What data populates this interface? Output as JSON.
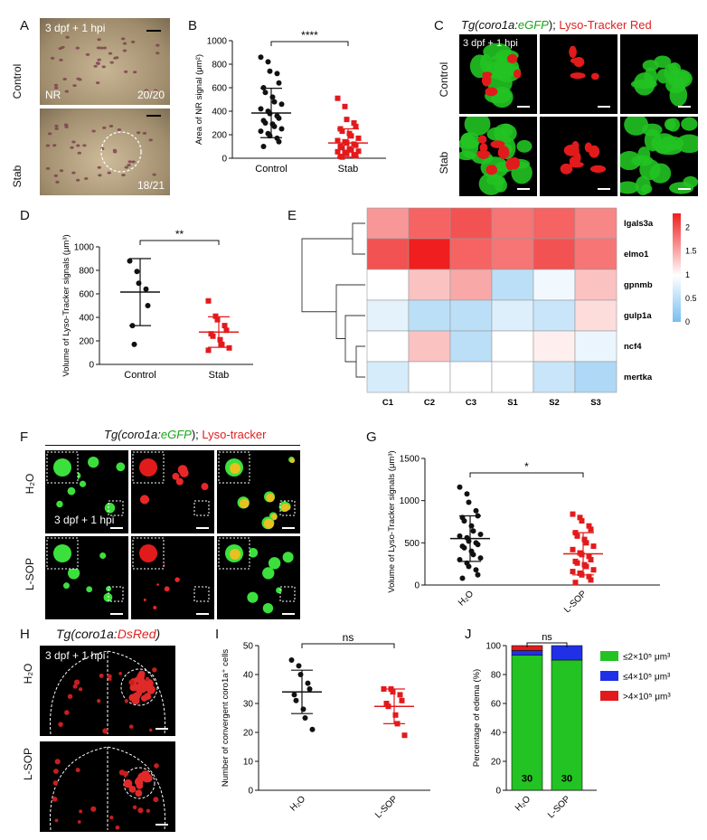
{
  "colors": {
    "ctrl": "#111111",
    "stab": "#e31a1c",
    "green": "#22c322",
    "blue": "#1f30e6",
    "lyso": "#e11b1b"
  },
  "panels": {
    "A": {
      "letter": "A",
      "time": "3 dpf + 1 hpi",
      "row1": "Control",
      "row2": "Stab",
      "nr": "NR",
      "count1": "20/20",
      "count2": "18/21"
    },
    "B": {
      "letter": "B",
      "sig": "****"
    },
    "C": {
      "letter": "C",
      "title_tg": "Tg(coro1a:",
      "title_gfp": "eGFP",
      "title_end": ");",
      "title_lyso": " Lyso-Tracker Red",
      "time": "3 dpf + 1 hpi",
      "row1": "Control",
      "row2": "Stab"
    },
    "D": {
      "letter": "D",
      "sig": "**"
    },
    "E": {
      "letter": "E",
      "genes": [
        "lgals3a",
        "elmo1",
        "gpnmb",
        "gulp1a",
        "ncf4",
        "mertka"
      ],
      "samples": [
        "C1",
        "C2",
        "C3",
        "S1",
        "S2",
        "S3"
      ],
      "scale": [
        "2",
        "1.5",
        "1",
        "0.5",
        "0"
      ]
    },
    "F": {
      "letter": "F",
      "title_tg": "Tg(coro1a:",
      "title_gfp": "eGFP",
      "title_end": ");",
      "title_lyso": " Lyso-tracker",
      "time": "3 dpf + 1 hpi",
      "row1": "H₂O",
      "row2": "L-SOP"
    },
    "G": {
      "letter": "G",
      "sig": "*"
    },
    "H": {
      "letter": "H",
      "title_tg": "Tg(coro1a:",
      "title_red": "DsRed",
      "title_end": ")",
      "time": "3 dpf + 1 hpi",
      "row1": "H₂O",
      "row2": "L-SOP"
    },
    "I": {
      "letter": "I",
      "sig": "ns"
    },
    "J": {
      "letter": "J",
      "sig": "ns",
      "n1": "30",
      "n2": "30"
    }
  },
  "chart_data": [
    {
      "id": "B",
      "type": "scatter",
      "ylabel": "Area of NR signal (μm²)",
      "ylim": [
        0,
        1000
      ],
      "yticks": [
        0,
        200,
        400,
        600,
        800,
        1000
      ],
      "categories": [
        "Control",
        "Stab"
      ],
      "series": [
        {
          "name": "Control",
          "mean": 385,
          "sd": 210,
          "values": [
            860,
            820,
            740,
            720,
            640,
            600,
            560,
            520,
            480,
            460,
            420,
            400,
            380,
            360,
            340,
            320,
            300,
            290,
            270,
            250,
            230,
            210,
            190,
            170,
            140,
            100
          ]
        },
        {
          "name": "Stab",
          "mean": 130,
          "sd": 120,
          "values": [
            510,
            440,
            330,
            300,
            270,
            250,
            230,
            210,
            190,
            170,
            150,
            140,
            130,
            120,
            110,
            100,
            90,
            80,
            70,
            60,
            55,
            50,
            40,
            30,
            20,
            15,
            10
          ]
        }
      ]
    },
    {
      "id": "D",
      "type": "scatter",
      "ylabel": "Volume of Lyso-Tracker signals (μm³)",
      "ylim": [
        0,
        1000
      ],
      "yticks": [
        0,
        200,
        400,
        600,
        800,
        1000
      ],
      "categories": [
        "Control",
        "Stab"
      ],
      "series": [
        {
          "name": "Control",
          "mean": 615,
          "sd": 285,
          "values": [
            880,
            790,
            690,
            640,
            500,
            330,
            170
          ]
        },
        {
          "name": "Stab",
          "mean": 275,
          "sd": 130,
          "values": [
            540,
            410,
            380,
            330,
            290,
            260,
            240,
            210,
            170,
            140,
            120
          ]
        }
      ]
    },
    {
      "id": "E",
      "type": "heatmap",
      "rows": [
        "lgals3a",
        "elmo1",
        "gpnmb",
        "gulp1a",
        "ncf4",
        "mertka"
      ],
      "cols": [
        "C1",
        "C2",
        "C3",
        "S1",
        "S2",
        "S3"
      ],
      "zlim": [
        0,
        2.3
      ],
      "values": [
        [
          1.6,
          1.9,
          2.0,
          1.8,
          1.9,
          1.7
        ],
        [
          2.0,
          2.3,
          1.9,
          1.8,
          2.0,
          1.8
        ],
        [
          1.0,
          1.35,
          1.5,
          0.5,
          0.9,
          1.35
        ],
        [
          0.8,
          0.5,
          0.5,
          0.75,
          0.6,
          1.2
        ],
        [
          1.0,
          1.35,
          0.5,
          1.0,
          1.1,
          0.85
        ],
        [
          0.7,
          1.0,
          1.0,
          1.0,
          0.6,
          0.4
        ]
      ]
    },
    {
      "id": "G",
      "type": "scatter",
      "ylabel": "Volume of Lyso-Tracker signals (μm³)",
      "ylim": [
        0,
        1500
      ],
      "yticks": [
        0,
        500,
        1000,
        1500
      ],
      "categories": [
        "H₂O",
        "L-SOP"
      ],
      "series": [
        {
          "name": "H₂O",
          "mean": 550,
          "sd": 270,
          "values": [
            1160,
            1080,
            980,
            880,
            820,
            800,
            760,
            700,
            640,
            600,
            580,
            560,
            520,
            500,
            480,
            460,
            440,
            400,
            360,
            320,
            300,
            260,
            220,
            180,
            120,
            80
          ]
        },
        {
          "name": "L-SOP",
          "mean": 370,
          "sd": 250,
          "values": [
            840,
            800,
            760,
            700,
            660,
            620,
            580,
            540,
            500,
            460,
            420,
            380,
            360,
            340,
            300,
            280,
            260,
            240,
            220,
            180,
            160,
            140,
            120,
            100,
            60,
            30
          ]
        }
      ]
    },
    {
      "id": "I",
      "type": "scatter",
      "ylabel": "Number of convergent coro1a⁺ cells",
      "ylim": [
        0,
        50
      ],
      "yticks": [
        0,
        10,
        20,
        30,
        40,
        50
      ],
      "categories": [
        "H₂O",
        "L-SOP"
      ],
      "series": [
        {
          "name": "H₂O",
          "mean": 34,
          "sd": 7.5,
          "values": [
            45,
            43,
            40,
            37,
            35,
            33,
            31,
            28,
            25,
            21
          ]
        },
        {
          "name": "L-SOP",
          "mean": 29,
          "sd": 6,
          "values": [
            35,
            35,
            34,
            33,
            31,
            30,
            29,
            26,
            23,
            19
          ]
        }
      ]
    },
    {
      "id": "J",
      "type": "bar",
      "stacked": true,
      "ylabel": "Percentage of edema (%)",
      "ylim": [
        0,
        100
      ],
      "yticks": [
        0,
        20,
        40,
        60,
        80,
        100
      ],
      "categories": [
        "H₂O",
        "L-SOP"
      ],
      "series": [
        {
          "name": "≤2×10⁵ μm³",
          "values": [
            93.3,
            90.0
          ]
        },
        {
          "name": "≤4×10⁵ μm³",
          "values": [
            3.3,
            10.0
          ]
        },
        {
          "name": ">4×10⁵ μm³",
          "values": [
            3.4,
            0
          ]
        }
      ]
    }
  ]
}
